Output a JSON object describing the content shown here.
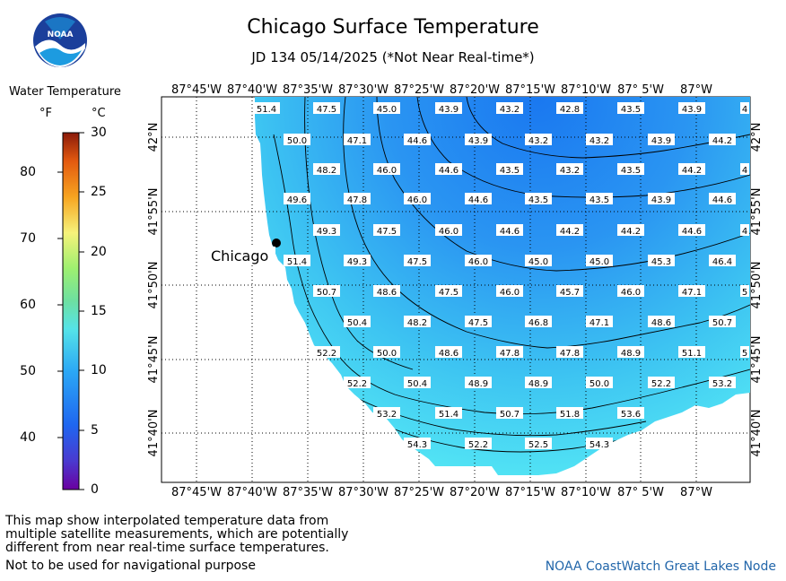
{
  "title": "Chicago Surface Temperature",
  "subtitle": "JD 134 05/14/2025 (*Not Near Real-time*)",
  "logo_text": "NOAA",
  "legend": {
    "title": "Water Temperature",
    "f_unit": "°F",
    "c_unit": "°C",
    "f_ticks": [
      "80",
      "70",
      "60",
      "50",
      "40"
    ],
    "c_ticks": [
      "30",
      "25",
      "20",
      "15",
      "10",
      "5",
      "0"
    ],
    "scale_min_c": 0,
    "scale_max_c": 30
  },
  "map": {
    "lon_labels": [
      "87°45'W",
      "87°40'W",
      "87°35'W",
      "87°30'W",
      "87°25'W",
      "87°20'W",
      "87°15'W",
      "87°10'W",
      "87° 5'W",
      "87°W"
    ],
    "lat_labels": [
      "42°N",
      "41°55'N",
      "41°50'N",
      "41°45'N",
      "41°40'N"
    ],
    "city": "Chicago",
    "temperature_labels": [
      [
        "51.4",
        "47.5",
        "45.0",
        "43.9",
        "43.2",
        "42.8",
        "43.5",
        "43.9",
        "4"
      ],
      [
        "50.0",
        "47.1",
        "44.6",
        "43.9",
        "43.2",
        "43.2",
        "43.9",
        "44.2"
      ],
      [
        "48.2",
        "46.0",
        "44.6",
        "43.5",
        "43.2",
        "43.5",
        "44.2",
        "4"
      ],
      [
        "49.6",
        "47.8",
        "46.0",
        "44.6",
        "43.5",
        "43.5",
        "43.9",
        "44.6"
      ],
      [
        "49.3",
        "47.5",
        "46.0",
        "44.6",
        "44.2",
        "44.2",
        "44.6",
        "4"
      ],
      [
        "51.4",
        "49.3",
        "47.5",
        "46.0",
        "45.0",
        "45.0",
        "45.3",
        "46.4"
      ],
      [
        "50.7",
        "48.6",
        "47.5",
        "46.0",
        "45.7",
        "46.0",
        "47.1",
        "5"
      ],
      [
        "50.4",
        "48.2",
        "47.5",
        "46.8",
        "47.1",
        "48.6",
        "50.7"
      ],
      [
        "52.2",
        "50.0",
        "48.6",
        "47.8",
        "47.8",
        "48.9",
        "51.1",
        "5"
      ],
      [
        "52.2",
        "50.4",
        "48.9",
        "48.9",
        "50.0",
        "52.2",
        "53.2"
      ],
      [
        "53.2",
        "51.4",
        "50.7",
        "51.8",
        "53.6"
      ],
      [
        "54.3",
        "52.2",
        "52.5",
        "54.3"
      ]
    ]
  },
  "notes": {
    "line1": "This map show interpolated temperature data from",
    "line2": "multiple satellite measurements, which are potentially",
    "line3": "different from near real-time surface temperatures.",
    "line4": "Not to be used for navigational purpose"
  },
  "source": "NOAA CoastWatch Great Lakes Node",
  "colors": {
    "lake_cold": "#1a78f0",
    "lake_warm": "#5cf3f5",
    "land": "#ffffff",
    "grid": "#000000"
  }
}
